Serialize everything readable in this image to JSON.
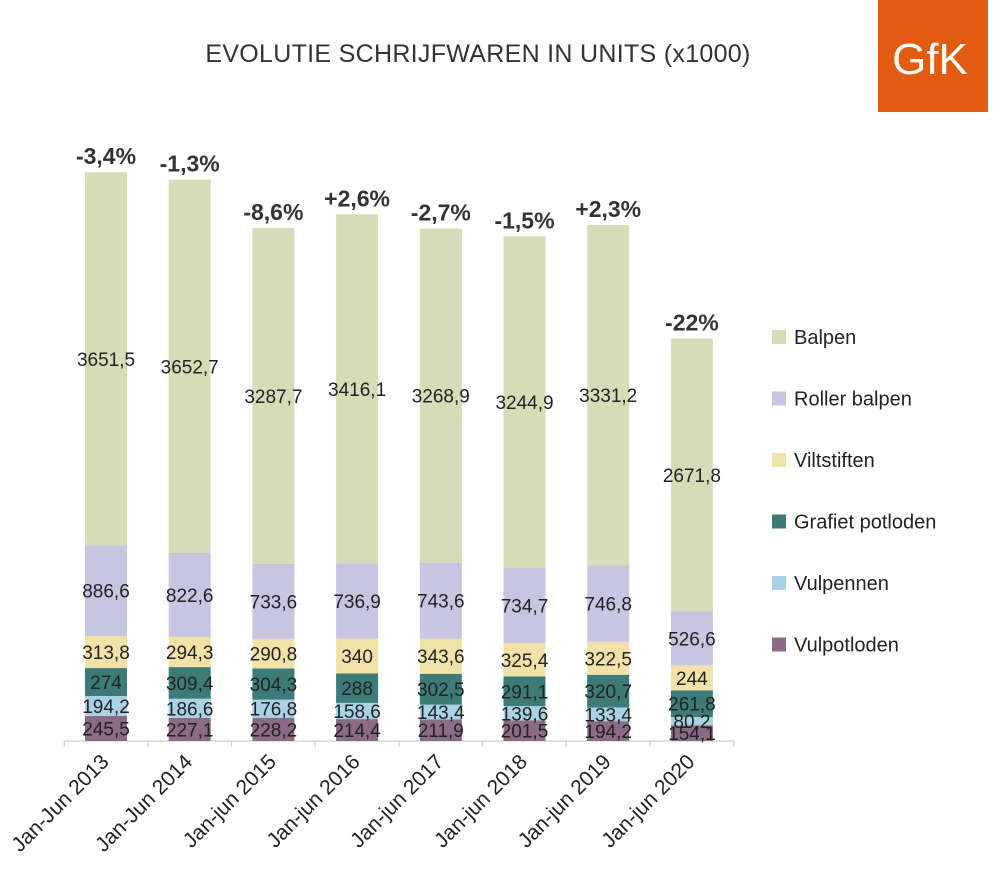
{
  "chart_data": {
    "type": "bar",
    "stacked": true,
    "title": "EVOLUTIE SCHRIJFWAREN IN UNITS (x1000)",
    "xlabel": "",
    "ylabel": "",
    "categories": [
      "Jan-Jun 2013",
      "Jan-Jun 2014",
      "Jan-jun 2015",
      "Jan-jun 2016",
      "Jan-jun 2017",
      "Jan-jun 2018",
      "Jan-jun 2019",
      "Jan-jun 2020"
    ],
    "series": [
      {
        "name": "Vulpotloden",
        "color": "#8B6B87",
        "values": [
          245.5,
          227.1,
          228.2,
          214.4,
          211.9,
          201.5,
          194.2,
          154.1
        ],
        "labels": [
          "245,5",
          "227,1",
          "228,2",
          "214,4",
          "211,9",
          "201,5",
          "194,2",
          "154,1"
        ]
      },
      {
        "name": "Vulpennen",
        "color": "#A9D2E6",
        "values": [
          194.2,
          186.6,
          176.8,
          158.6,
          143.4,
          139.6,
          133.4,
          80.2
        ],
        "labels": [
          "194,2",
          "186,6",
          "176,8",
          "158,6",
          "143,4",
          "139,6",
          "133,4",
          "80,2"
        ]
      },
      {
        "name": "Grafiet potloden",
        "color": "#3C7B78",
        "values": [
          274,
          309.4,
          304.3,
          288,
          302.5,
          291.1,
          320.7,
          261.8
        ],
        "labels": [
          "274",
          "309,4",
          "304,3",
          "288",
          "302,5",
          "291,1",
          "320,7",
          "261,8"
        ]
      },
      {
        "name": "Viltstiften",
        "color": "#F2E2A8",
        "values": [
          313.8,
          294.3,
          290.8,
          340,
          343.6,
          325.4,
          322.5,
          244
        ],
        "labels": [
          "313,8",
          "294,3",
          "290,8",
          "340",
          "343,6",
          "325,4",
          "322,5",
          "244"
        ]
      },
      {
        "name": "Roller balpen",
        "color": "#C7C5E2",
        "values": [
          886.6,
          822.6,
          733.6,
          736.9,
          743.6,
          734.7,
          746.8,
          526.6
        ],
        "labels": [
          "886,6",
          "822,6",
          "733,6",
          "736,9",
          "743,6",
          "734,7",
          "746,8",
          "526,6"
        ]
      },
      {
        "name": "Balpen",
        "color": "#D5DCB6",
        "values": [
          3651.5,
          3652.7,
          3287.7,
          3416.1,
          3268.9,
          3244.9,
          3331.2,
          2671.8
        ],
        "labels": [
          "3651,5",
          "3652,7",
          "3287,7",
          "3416,1",
          "3268,9",
          "3244,9",
          "3331,2",
          "2671,8"
        ]
      }
    ],
    "changes": [
      "-3,4%",
      "-1,3%",
      "-8,6%",
      "+2,6%",
      "-2,7%",
      "-1,5%",
      "+2,3%",
      "-22%"
    ],
    "legend": {
      "placement": "right",
      "order": [
        "Balpen",
        "Roller balpen",
        "Viltstiften",
        "Grafiet potloden",
        "Vulpennen",
        "Vulpotloden"
      ],
      "labels": [
        "Balpen",
        "Roller balpen",
        "Viltstiften",
        "Grafiet potloden",
        "Vulpennen",
        "Vulpotloden"
      ]
    },
    "ylim": [
      0,
      5700
    ],
    "grid": false
  },
  "logo": {
    "text": "GfK",
    "color": "#E35B10"
  }
}
